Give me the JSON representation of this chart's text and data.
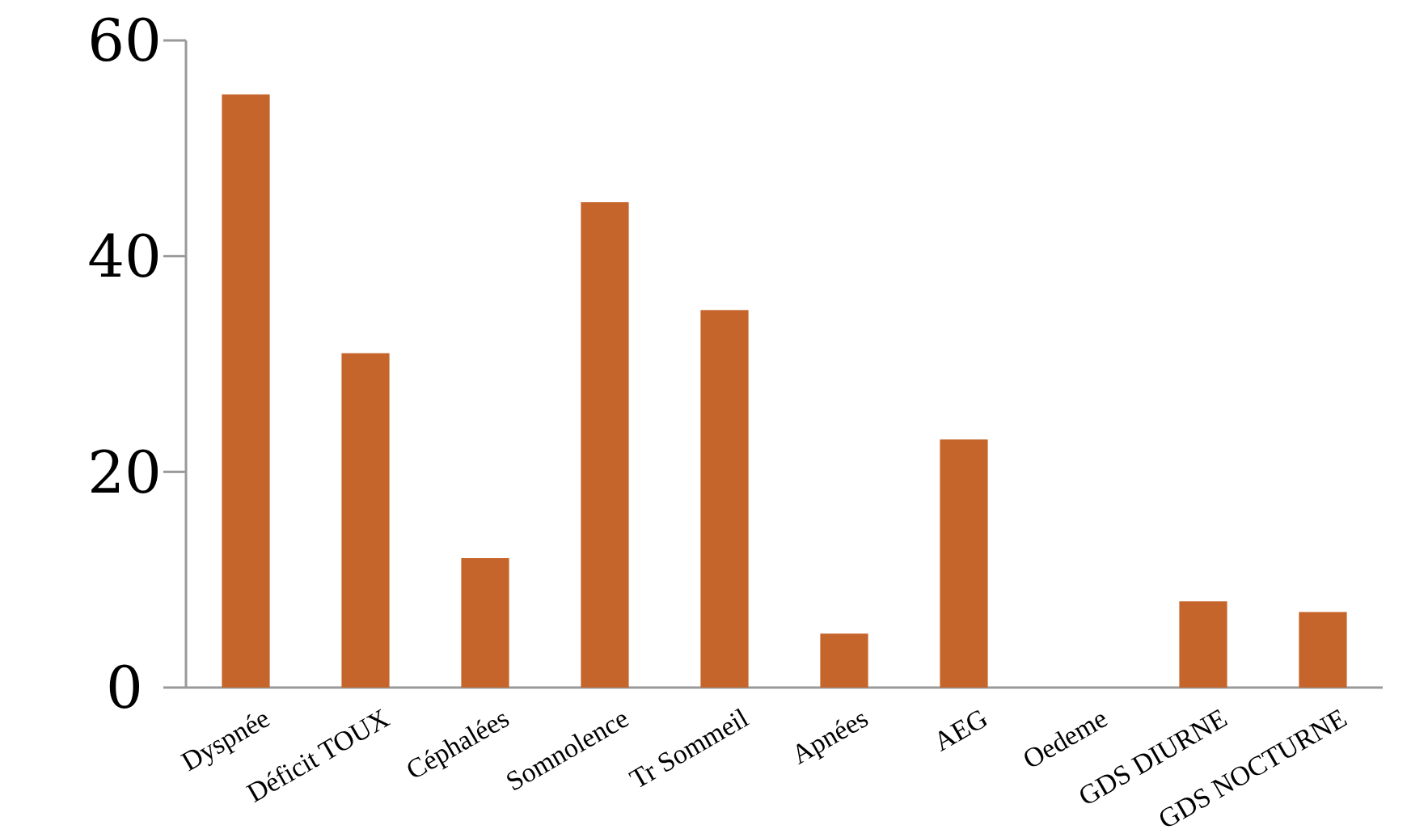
{
  "chart_data": {
    "type": "bar",
    "categories": [
      "Dyspnée",
      "Déficit TOUX",
      "Céphalées",
      "Somnolence",
      "Tr Sommeil",
      "Apnées",
      "AEG",
      "Oedeme",
      "GDS DIURNE",
      "GDS NOCTURNE"
    ],
    "values": [
      55,
      31,
      12,
      45,
      35,
      5,
      23,
      0,
      8,
      7
    ],
    "color": "#c5652b",
    "ylim": [
      0,
      60
    ],
    "yticks": [
      0,
      20,
      40,
      60
    ],
    "grid": false
  }
}
